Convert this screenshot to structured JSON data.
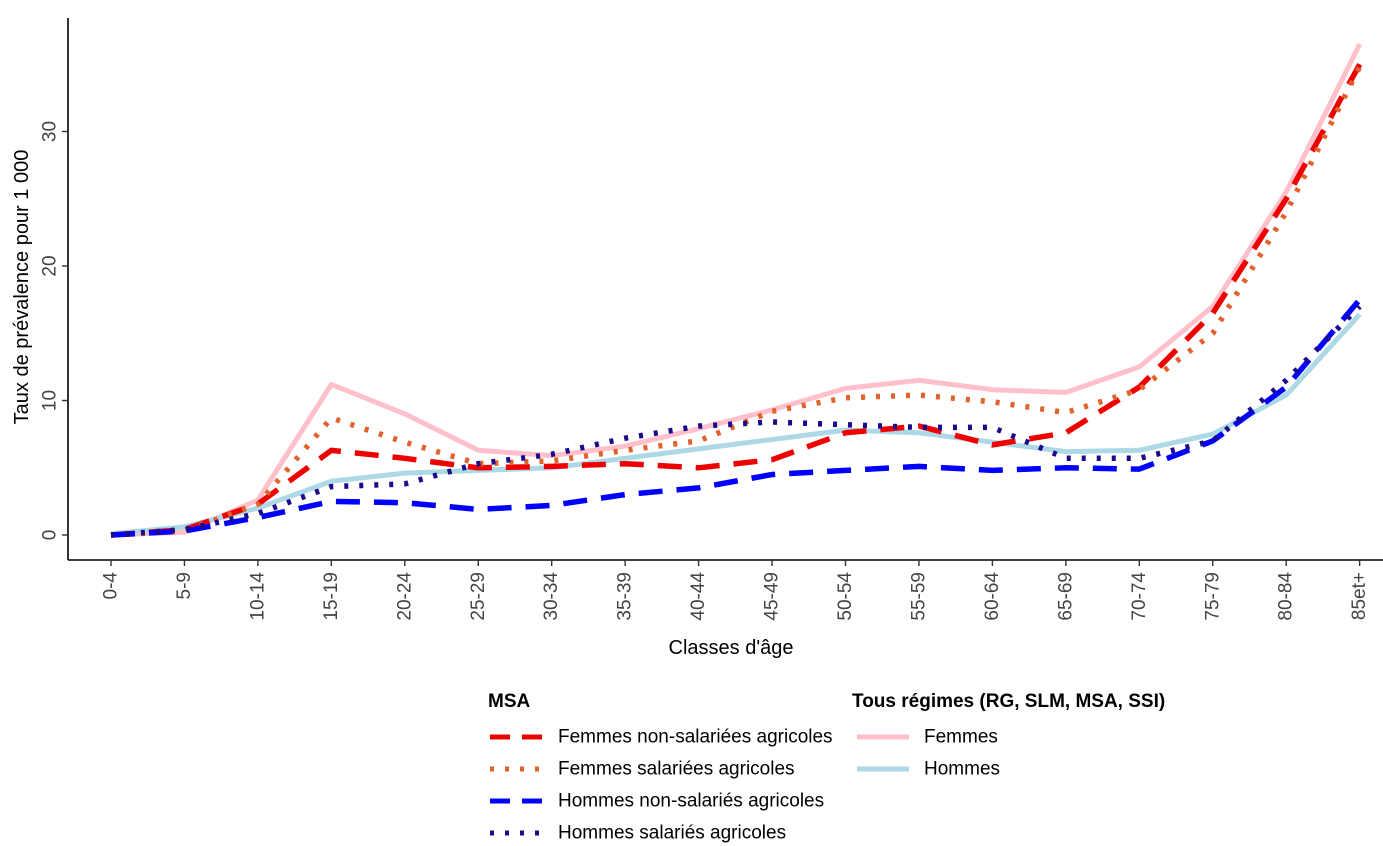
{
  "chart_data": {
    "type": "line",
    "xlabel": "Classes d'âge",
    "ylabel": "Taux de prévalence pour 1 000",
    "categories": [
      "0-4",
      "5-9",
      "10-14",
      "15-19",
      "20-24",
      "25-29",
      "30-34",
      "35-39",
      "40-44",
      "45-49",
      "50-54",
      "55-59",
      "60-64",
      "65-69",
      "70-74",
      "75-79",
      "80-84",
      "85et+"
    ],
    "ylim": [
      -2,
      38
    ],
    "yticks": [
      0,
      10,
      20,
      30
    ],
    "ytick_labels": [
      "0",
      "10",
      "20",
      "30"
    ],
    "grid": false,
    "legend_position": "bottom",
    "legend_groups": [
      {
        "title": "MSA",
        "series": [
          "Femmes non-salariées agricoles",
          "Femmes salariées agricoles",
          "Hommes non-salariés agricoles",
          "Hommes salariés agricoles"
        ]
      },
      {
        "title": "Tous régimes (RG, SLM, MSA, SSI)",
        "series": [
          "Femmes",
          "Hommes"
        ]
      }
    ],
    "series": [
      {
        "name": "Femmes",
        "color": "#ffc0cb",
        "dash": "solid",
        "values": [
          0.0,
          0.2,
          2.6,
          11.2,
          9.0,
          6.3,
          5.9,
          6.6,
          7.9,
          9.3,
          10.9,
          11.5,
          10.8,
          10.6,
          12.5,
          17.0,
          25.5,
          36.5
        ]
      },
      {
        "name": "Hommes",
        "color": "#add8e6",
        "dash": "solid",
        "values": [
          0.1,
          0.6,
          2.0,
          4.0,
          4.6,
          4.8,
          5.0,
          5.7,
          6.4,
          7.1,
          7.8,
          7.6,
          6.9,
          6.2,
          6.3,
          7.5,
          10.4,
          16.4
        ]
      },
      {
        "name": "Femmes non-salariées agricoles",
        "color": "#ee0000",
        "dash": "long-dash",
        "values": [
          0.0,
          0.4,
          2.3,
          6.3,
          5.7,
          5.0,
          5.1,
          5.3,
          5.0,
          5.6,
          7.6,
          8.1,
          6.7,
          7.6,
          11.0,
          16.5,
          25.0,
          35.0
        ]
      },
      {
        "name": "Femmes salariées agricoles",
        "color": "#e2622c",
        "dash": "dotted",
        "values": [
          0.0,
          0.3,
          2.3,
          8.7,
          6.9,
          5.3,
          5.5,
          6.3,
          7.0,
          9.2,
          10.2,
          10.4,
          9.9,
          9.1,
          10.8,
          15.0,
          24.0,
          34.8
        ]
      },
      {
        "name": "Hommes non-salariés agricoles",
        "color": "#0000ff",
        "dash": "long-dash",
        "values": [
          0.0,
          0.3,
          1.3,
          2.5,
          2.4,
          1.9,
          2.2,
          3.0,
          3.5,
          4.5,
          4.8,
          5.1,
          4.8,
          5.0,
          4.9,
          7.0,
          11.0,
          17.5
        ]
      },
      {
        "name": "Hommes salariés agricoles",
        "color": "#1a0a8c",
        "dash": "dotted",
        "values": [
          0.0,
          0.4,
          1.6,
          3.6,
          3.8,
          5.3,
          6.0,
          7.2,
          8.1,
          8.4,
          8.2,
          8.0,
          8.0,
          5.7,
          5.7,
          7.0,
          11.5,
          17.0
        ]
      }
    ]
  }
}
